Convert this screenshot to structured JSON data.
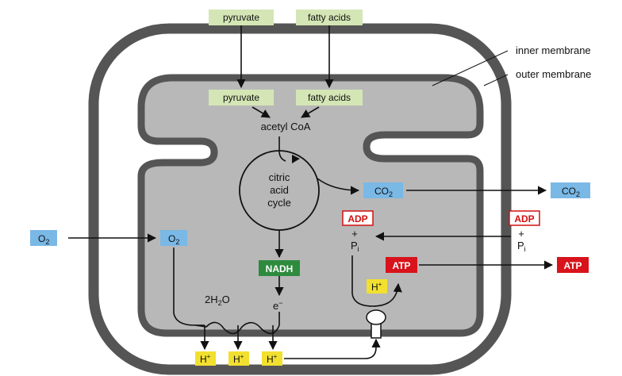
{
  "labels": {
    "inner_membrane": "inner membrane",
    "outer_membrane": "outer membrane",
    "pyruvate_outer": "pyruvate",
    "fatty_acids_outer": "fatty acids",
    "pyruvate_inner": "pyruvate",
    "fatty_acids_inner": "fatty acids",
    "acetyl_coa": "acetyl CoA",
    "cycle_line1": "citric",
    "cycle_line2": "acid",
    "cycle_line3": "cycle",
    "co2_inner": "CO",
    "co2_inner_sub": "2",
    "co2_outer": "CO",
    "co2_outer_sub": "2",
    "o2_outer": "O",
    "o2_outer_sub": "2",
    "o2_inner": "O",
    "o2_inner_sub": "2",
    "nadh": "NADH",
    "water": "2H",
    "water_sub": "2",
    "water_end": "O",
    "electron": "e",
    "electron_sup": "−",
    "adp_inner": "ADP",
    "adp_outer": "ADP",
    "plus_inner": "+",
    "plus_outer": "+",
    "pi_inner": "P",
    "pi_inner_sub": "i",
    "pi_outer": "P",
    "pi_outer_sub": "i",
    "atp_inner": "ATP",
    "atp_outer": "ATP",
    "hplus": "H",
    "hplus_sup": "+"
  },
  "colors": {
    "outer_membrane": "#555555",
    "intermembrane_space": "#ffffff",
    "matrix": "#b8b8b8",
    "green_box": "#d4e6b5",
    "blue_box": "#7ab8e6",
    "nadh_box": "#2e8b3e",
    "atp_box": "#d8131b",
    "adp_border": "#d01010",
    "hplus_box": "#f2e030"
  }
}
